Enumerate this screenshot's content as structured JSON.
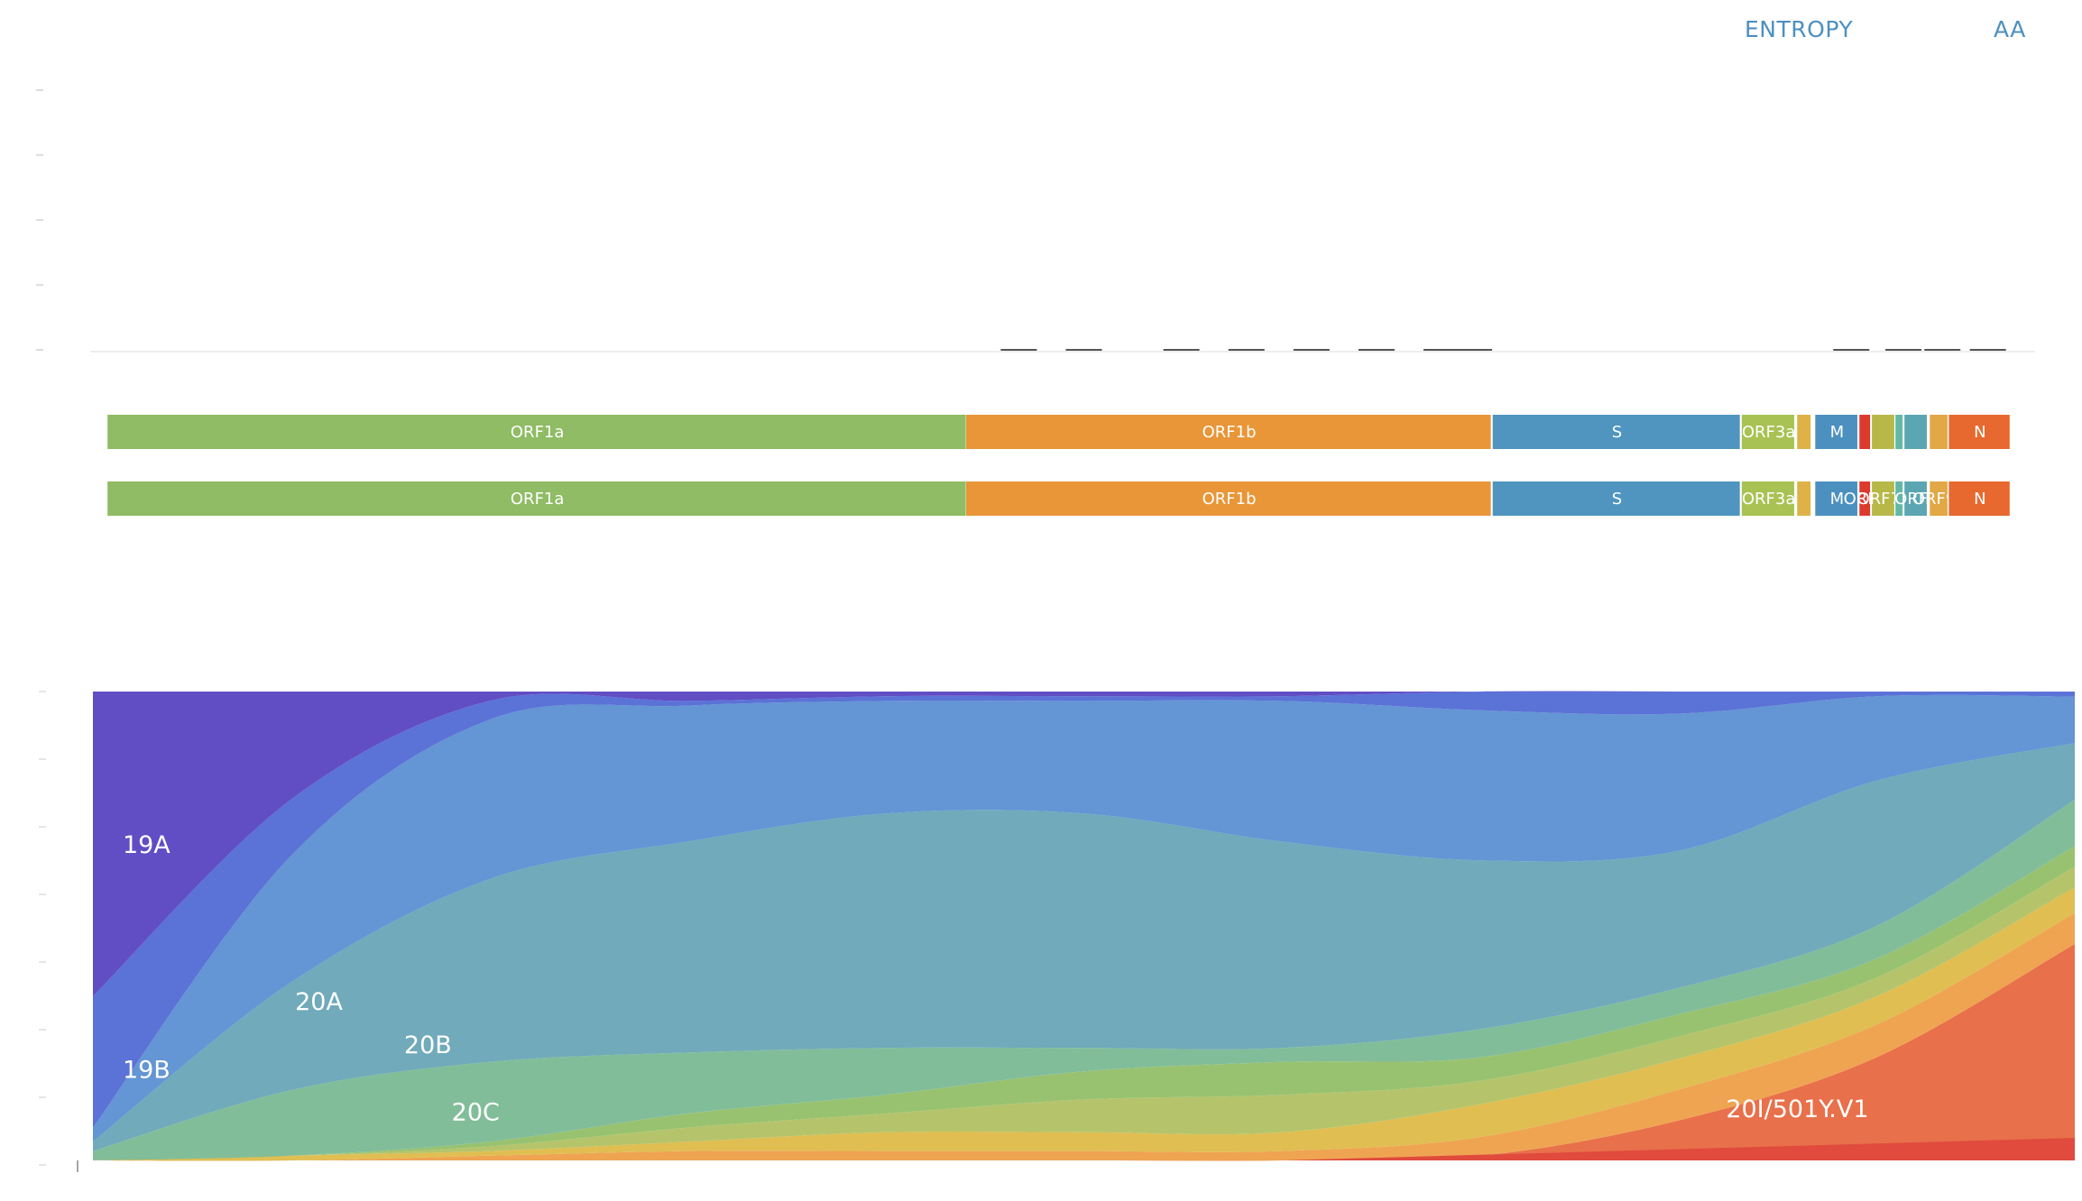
{
  "controls": {
    "entropy_label": "ENTROPY",
    "aa_label": "AA"
  },
  "colors": {
    "orf1a": "#8FBC64",
    "orf1b": "#E89638",
    "s": "#4F95BF",
    "orf3a": "#A9C254",
    "e": "#DEB247",
    "m": "#4C90C0",
    "orf6": "#DD3A2E",
    "orf7a": "#B7B848",
    "orf7b": "#62B7A8",
    "orf8": "#5BA6B2",
    "orf9b": "#E2A845",
    "n": "#E8692F"
  },
  "genome_map": {
    "genome_length": 29903,
    "genes_top": [
      {
        "name": "ORF1a",
        "label": "ORF1a",
        "start": 266,
        "end": 13483,
        "color": "#8FBC64"
      },
      {
        "name": "ORF1b",
        "label": "ORF1b",
        "start": 13468,
        "end": 21555,
        "color": "#E89638"
      },
      {
        "name": "S",
        "label": "S",
        "start": 21563,
        "end": 25384,
        "color": "#4F95BF"
      },
      {
        "name": "ORF3a",
        "label": "ORF3a",
        "start": 25393,
        "end": 26220,
        "color": "#A9C254"
      },
      {
        "name": "E",
        "label": "",
        "start": 26245,
        "end": 26472,
        "color": "#DEB247"
      },
      {
        "name": "M",
        "label": "M",
        "start": 26523,
        "end": 27191,
        "color": "#4C90C0"
      },
      {
        "name": "ORF6",
        "label": "",
        "start": 27202,
        "end": 27387,
        "color": "#DD3A2E"
      },
      {
        "name": "ORF7a",
        "label": "",
        "start": 27394,
        "end": 27759,
        "color": "#B7B848"
      },
      {
        "name": "ORF7b",
        "label": "",
        "start": 27756,
        "end": 27887,
        "color": "#62B7A8"
      },
      {
        "name": "ORF8",
        "label": "",
        "start": 27894,
        "end": 28259,
        "color": "#5BA6B2"
      },
      {
        "name": "ORF9b",
        "label": "",
        "start": 28284,
        "end": 28577,
        "color": "#E2A845"
      },
      {
        "name": "N",
        "label": "N",
        "start": 28577,
        "end": 29533,
        "color": "#E8692F"
      }
    ],
    "genes_bottom": [
      {
        "name": "ORF1a",
        "label": "ORF1a",
        "start": 266,
        "end": 13483,
        "color": "#8FBC64"
      },
      {
        "name": "ORF1b",
        "label": "ORF1b",
        "start": 13468,
        "end": 21555,
        "color": "#E89638"
      },
      {
        "name": "S",
        "label": "S",
        "start": 21563,
        "end": 25384,
        "color": "#4F95BF"
      },
      {
        "name": "ORF3a",
        "label": "ORF3a",
        "start": 25393,
        "end": 26220,
        "color": "#A9C254"
      },
      {
        "name": "E",
        "label": "",
        "start": 26245,
        "end": 26472,
        "color": "#DEB247"
      },
      {
        "name": "M",
        "label": "M",
        "start": 26523,
        "end": 27191,
        "color": "#4C90C0"
      },
      {
        "name": "ORF6",
        "label": "ORF6",
        "start": 27202,
        "end": 27387,
        "color": "#DD3A2E"
      },
      {
        "name": "ORF7a",
        "label": "ORF7a",
        "start": 27394,
        "end": 27759,
        "color": "#B7B848"
      },
      {
        "name": "ORF7b",
        "label": "",
        "start": 27756,
        "end": 27887,
        "color": "#62B7A8"
      },
      {
        "name": "ORF8",
        "label": "ORF8",
        "start": 27894,
        "end": 28259,
        "color": "#5BA6B2"
      },
      {
        "name": "ORF9b",
        "label": "ORF9b",
        "start": 28284,
        "end": 28577,
        "color": "#E2A845"
      },
      {
        "name": "N",
        "label": "N",
        "start": 28577,
        "end": 29533,
        "color": "#E8692F"
      }
    ]
  },
  "chart_data": {
    "type": "area",
    "stacked": true,
    "normalized": true,
    "ylim": [
      0,
      1
    ],
    "x": [
      0,
      0.1,
      0.2,
      0.3,
      0.4,
      0.5,
      0.6,
      0.7,
      0.8,
      0.9,
      1.0
    ],
    "series": [
      {
        "name": "20I/501Y.V1",
        "color": "#E8704A",
        "values": [
          0,
          0,
          0,
          0,
          0,
          0,
          0,
          0.01,
          0.09,
          0.22,
          0.42
        ]
      },
      {
        "name": "",
        "color": "#EFA452",
        "values": [
          0,
          0,
          0.01,
          0.02,
          0.02,
          0.02,
          0.02,
          0.04,
          0.07,
          0.07,
          0.06
        ]
      },
      {
        "name": "",
        "color": "#E0BE52",
        "values": [
          0,
          0.01,
          0.01,
          0.02,
          0.04,
          0.04,
          0.04,
          0.07,
          0.07,
          0.06,
          0.05
        ]
      },
      {
        "name": "",
        "color": "#B5C46B",
        "values": [
          0,
          0,
          0.01,
          0.03,
          0.04,
          0.07,
          0.08,
          0.05,
          0.05,
          0.04,
          0.04
        ]
      },
      {
        "name": "",
        "color": "#98C270",
        "values": [
          0,
          0,
          0.01,
          0.03,
          0.04,
          0.06,
          0.07,
          0.05,
          0.05,
          0.04,
          0.04
        ]
      },
      {
        "name": "20C",
        "color": "#82BD9A",
        "values": [
          0.02,
          0.14,
          0.17,
          0.13,
          0.1,
          0.05,
          0.03,
          0.06,
          0.06,
          0.07,
          0.09
        ]
      },
      {
        "name": "20B",
        "color": "#70AABB",
        "values": [
          0.02,
          0.23,
          0.39,
          0.45,
          0.5,
          0.5,
          0.44,
          0.36,
          0.31,
          0.31,
          0.11
        ]
      },
      {
        "name": "",
        "color": "#6495D4",
        "values": [
          0.03,
          0.27,
          0.34,
          0.29,
          0.24,
          0.24,
          0.3,
          0.32,
          0.31,
          0.18,
          0.09
        ]
      },
      {
        "name": "19B",
        "color": "#5B72D7",
        "values": [
          0.28,
          0.12,
          0.04,
          0.01,
          0.01,
          0.01,
          0.01,
          0.04,
          0.05,
          0.01,
          0.01
        ]
      },
      {
        "name": "19A",
        "color": "#614DC4",
        "values": [
          0.65,
          0.23,
          0.02,
          0.02,
          0.01,
          0.01,
          0.01,
          0,
          0,
          0,
          0
        ]
      }
    ],
    "labels": [
      {
        "text": "19A"
      },
      {
        "text": "19B"
      },
      {
        "text": "20A"
      },
      {
        "text": "20B"
      },
      {
        "text": "20C"
      },
      {
        "text": "20I/501Y.V1"
      }
    ]
  }
}
